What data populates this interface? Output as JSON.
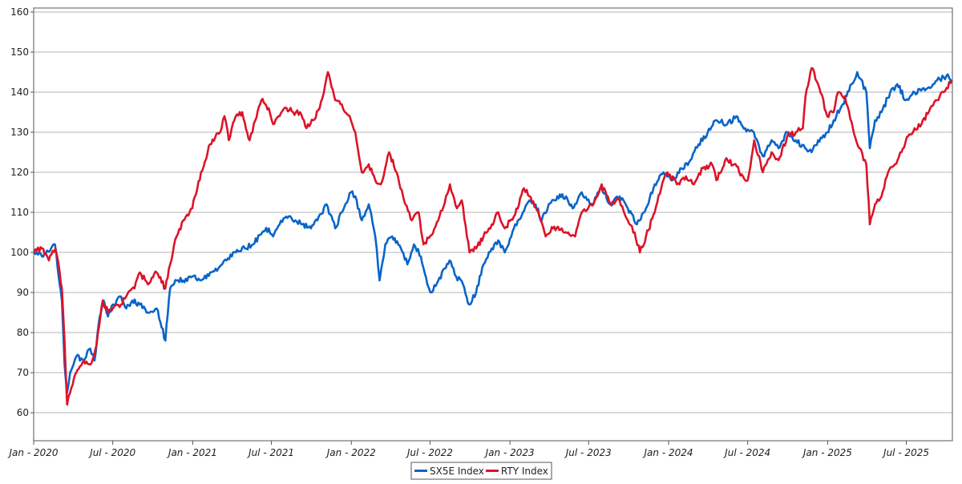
{
  "chart_data": {
    "type": "line",
    "title": "",
    "xlabel": "",
    "ylabel": "",
    "xlim": [
      "2020-01-01",
      "2025-10-15"
    ],
    "ylim": [
      53,
      161
    ],
    "yticks": [
      60,
      70,
      80,
      90,
      100,
      110,
      120,
      130,
      140,
      150,
      160
    ],
    "xticks": [
      {
        "date": "2020-01-01",
        "label": "Jan - 2020"
      },
      {
        "date": "2020-07-01",
        "label": "Jul - 2020"
      },
      {
        "date": "2021-01-01",
        "label": "Jan - 2021"
      },
      {
        "date": "2021-07-01",
        "label": "Jul - 2021"
      },
      {
        "date": "2022-01-01",
        "label": "Jan - 2022"
      },
      {
        "date": "2022-07-01",
        "label": "Jul - 2022"
      },
      {
        "date": "2023-01-01",
        "label": "Jan - 2023"
      },
      {
        "date": "2023-07-01",
        "label": "Jul - 2023"
      },
      {
        "date": "2024-01-01",
        "label": "Jan - 2024"
      },
      {
        "date": "2024-07-01",
        "label": "Jul - 2024"
      },
      {
        "date": "2025-01-01",
        "label": "Jan - 2025"
      },
      {
        "date": "2025-07-01",
        "label": "Jul - 2025"
      }
    ],
    "grid": "horizontal",
    "legend_position": "bottom-center",
    "series": [
      {
        "name": "SX5E Index",
        "color": "#0a64c8",
        "points": [
          [
            "2020-01-02",
            100
          ],
          [
            "2020-01-20",
            99
          ],
          [
            "2020-02-10",
            101
          ],
          [
            "2020-02-19",
            102
          ],
          [
            "2020-03-01",
            92
          ],
          [
            "2020-03-06",
            88
          ],
          [
            "2020-03-12",
            72
          ],
          [
            "2020-03-18",
            65
          ],
          [
            "2020-03-25",
            70
          ],
          [
            "2020-04-08",
            74
          ],
          [
            "2020-04-25",
            73
          ],
          [
            "2020-05-10",
            76
          ],
          [
            "2020-05-20",
            73
          ],
          [
            "2020-06-01",
            84
          ],
          [
            "2020-06-10",
            88
          ],
          [
            "2020-06-20",
            84
          ],
          [
            "2020-07-01",
            87
          ],
          [
            "2020-07-20",
            89
          ],
          [
            "2020-08-01",
            86
          ],
          [
            "2020-08-15",
            88
          ],
          [
            "2020-09-01",
            87
          ],
          [
            "2020-09-20",
            85
          ],
          [
            "2020-10-10",
            86
          ],
          [
            "2020-10-30",
            78
          ],
          [
            "2020-11-10",
            91
          ],
          [
            "2020-11-25",
            93
          ],
          [
            "2020-12-10",
            93
          ],
          [
            "2020-12-31",
            94
          ],
          [
            "2021-01-20",
            93
          ],
          [
            "2021-02-10",
            95
          ],
          [
            "2021-03-01",
            96
          ],
          [
            "2021-03-20",
            98
          ],
          [
            "2021-04-10",
            100
          ],
          [
            "2021-05-01",
            101
          ],
          [
            "2021-05-20",
            102
          ],
          [
            "2021-06-10",
            105
          ],
          [
            "2021-06-25",
            106
          ],
          [
            "2021-07-05",
            104
          ],
          [
            "2021-07-20",
            107
          ],
          [
            "2021-08-10",
            109
          ],
          [
            "2021-08-25",
            108
          ],
          [
            "2021-09-10",
            107
          ],
          [
            "2021-09-30",
            106
          ],
          [
            "2021-10-15",
            108
          ],
          [
            "2021-11-05",
            112
          ],
          [
            "2021-11-25",
            106
          ],
          [
            "2021-12-10",
            110
          ],
          [
            "2021-12-31",
            115
          ],
          [
            "2022-01-10",
            114
          ],
          [
            "2022-01-25",
            108
          ],
          [
            "2022-02-10",
            112
          ],
          [
            "2022-02-25",
            104
          ],
          [
            "2022-03-07",
            93
          ],
          [
            "2022-03-20",
            102
          ],
          [
            "2022-04-05",
            104
          ],
          [
            "2022-04-25",
            101
          ],
          [
            "2022-05-10",
            97
          ],
          [
            "2022-05-25",
            102
          ],
          [
            "2022-06-10",
            99
          ],
          [
            "2022-06-25",
            92
          ],
          [
            "2022-07-05",
            90
          ],
          [
            "2022-07-20",
            93
          ],
          [
            "2022-08-15",
            98
          ],
          [
            "2022-08-30",
            94
          ],
          [
            "2022-09-15",
            92
          ],
          [
            "2022-09-29",
            87
          ],
          [
            "2022-10-15",
            90
          ],
          [
            "2022-11-01",
            97
          ],
          [
            "2022-11-20",
            101
          ],
          [
            "2022-12-05",
            103
          ],
          [
            "2022-12-20",
            100
          ],
          [
            "2023-01-10",
            106
          ],
          [
            "2023-01-31",
            110
          ],
          [
            "2023-02-15",
            113
          ],
          [
            "2023-03-01",
            112
          ],
          [
            "2023-03-15",
            108
          ],
          [
            "2023-03-31",
            112
          ],
          [
            "2023-04-20",
            114
          ],
          [
            "2023-05-10",
            114
          ],
          [
            "2023-05-25",
            111
          ],
          [
            "2023-06-15",
            115
          ],
          [
            "2023-07-10",
            112
          ],
          [
            "2023-07-31",
            116
          ],
          [
            "2023-08-20",
            112
          ],
          [
            "2023-09-10",
            114
          ],
          [
            "2023-09-29",
            111
          ],
          [
            "2023-10-20",
            107
          ],
          [
            "2023-11-10",
            111
          ],
          [
            "2023-11-30",
            117
          ],
          [
            "2023-12-20",
            120
          ],
          [
            "2024-01-10",
            118
          ],
          [
            "2024-01-31",
            121
          ],
          [
            "2024-02-20",
            123
          ],
          [
            "2024-03-10",
            127
          ],
          [
            "2024-03-31",
            130
          ],
          [
            "2024-04-20",
            133
          ],
          [
            "2024-05-15",
            132
          ],
          [
            "2024-06-05",
            134
          ],
          [
            "2024-06-25",
            131
          ],
          [
            "2024-07-15",
            130
          ],
          [
            "2024-08-05",
            124
          ],
          [
            "2024-08-25",
            128
          ],
          [
            "2024-09-10",
            126
          ],
          [
            "2024-09-30",
            130
          ],
          [
            "2024-10-20",
            128
          ],
          [
            "2024-11-10",
            126
          ],
          [
            "2024-11-25",
            125
          ],
          [
            "2024-12-10",
            128
          ],
          [
            "2024-12-31",
            130
          ],
          [
            "2025-01-15",
            133
          ],
          [
            "2025-02-05",
            137
          ],
          [
            "2025-02-25",
            142
          ],
          [
            "2025-03-10",
            145
          ],
          [
            "2025-03-31",
            140
          ],
          [
            "2025-04-08",
            126
          ],
          [
            "2025-04-20",
            133
          ],
          [
            "2025-05-05",
            135
          ],
          [
            "2025-05-25",
            140
          ],
          [
            "2025-06-10",
            142
          ],
          [
            "2025-06-30",
            138
          ],
          [
            "2025-07-20",
            140
          ],
          [
            "2025-08-10",
            141
          ],
          [
            "2025-08-25",
            141
          ],
          [
            "2025-09-10",
            143
          ],
          [
            "2025-10-01",
            144
          ],
          [
            "2025-10-14",
            143
          ]
        ]
      },
      {
        "name": "RTY Index",
        "color": "#dc1428",
        "points": [
          [
            "2020-01-02",
            100
          ],
          [
            "2020-01-20",
            101
          ],
          [
            "2020-02-05",
            98
          ],
          [
            "2020-02-20",
            101
          ],
          [
            "2020-03-01",
            95
          ],
          [
            "2020-03-06",
            91
          ],
          [
            "2020-03-12",
            78
          ],
          [
            "2020-03-18",
            62
          ],
          [
            "2020-03-25",
            65
          ],
          [
            "2020-04-08",
            70
          ],
          [
            "2020-04-25",
            73
          ],
          [
            "2020-05-10",
            72
          ],
          [
            "2020-05-25",
            77
          ],
          [
            "2020-06-08",
            88
          ],
          [
            "2020-06-20",
            85
          ],
          [
            "2020-07-01",
            86
          ],
          [
            "2020-07-20",
            87
          ],
          [
            "2020-08-01",
            89
          ],
          [
            "2020-08-20",
            91
          ],
          [
            "2020-09-01",
            95
          ],
          [
            "2020-09-20",
            92
          ],
          [
            "2020-10-10",
            95
          ],
          [
            "2020-10-30",
            91
          ],
          [
            "2020-11-10",
            97
          ],
          [
            "2020-11-25",
            104
          ],
          [
            "2020-12-10",
            108
          ],
          [
            "2020-12-31",
            111
          ],
          [
            "2021-01-20",
            120
          ],
          [
            "2021-02-10",
            127
          ],
          [
            "2021-03-05",
            130
          ],
          [
            "2021-03-15",
            134
          ],
          [
            "2021-03-25",
            128
          ],
          [
            "2021-04-10",
            134
          ],
          [
            "2021-04-25",
            135
          ],
          [
            "2021-05-12",
            128
          ],
          [
            "2021-05-25",
            133
          ],
          [
            "2021-06-08",
            138
          ],
          [
            "2021-06-25",
            136
          ],
          [
            "2021-07-05",
            132
          ],
          [
            "2021-07-20",
            134
          ],
          [
            "2021-08-05",
            136
          ],
          [
            "2021-08-20",
            135
          ],
          [
            "2021-09-05",
            135
          ],
          [
            "2021-09-20",
            131
          ],
          [
            "2021-10-05",
            133
          ],
          [
            "2021-10-20",
            136
          ],
          [
            "2021-11-08",
            145
          ],
          [
            "2021-11-25",
            138
          ],
          [
            "2021-12-10",
            137
          ],
          [
            "2021-12-31",
            133
          ],
          [
            "2022-01-10",
            130
          ],
          [
            "2022-01-25",
            120
          ],
          [
            "2022-02-10",
            122
          ],
          [
            "2022-02-25",
            118
          ],
          [
            "2022-03-10",
            117
          ],
          [
            "2022-03-29",
            125
          ],
          [
            "2022-04-15",
            120
          ],
          [
            "2022-04-30",
            114
          ],
          [
            "2022-05-20",
            108
          ],
          [
            "2022-06-05",
            110
          ],
          [
            "2022-06-16",
            102
          ],
          [
            "2022-07-01",
            104
          ],
          [
            "2022-07-20",
            108
          ],
          [
            "2022-08-16",
            117
          ],
          [
            "2022-09-01",
            111
          ],
          [
            "2022-09-12",
            113
          ],
          [
            "2022-09-30",
            100
          ],
          [
            "2022-10-15",
            101
          ],
          [
            "2022-11-01",
            104
          ],
          [
            "2022-11-20",
            107
          ],
          [
            "2022-12-05",
            110
          ],
          [
            "2022-12-20",
            106
          ],
          [
            "2023-01-10",
            109
          ],
          [
            "2023-02-02",
            116
          ],
          [
            "2023-02-15",
            114
          ],
          [
            "2023-03-10",
            109
          ],
          [
            "2023-03-24",
            104
          ],
          [
            "2023-04-10",
            106
          ],
          [
            "2023-04-30",
            106
          ],
          [
            "2023-05-15",
            105
          ],
          [
            "2023-05-31",
            104
          ],
          [
            "2023-06-15",
            110
          ],
          [
            "2023-06-30",
            111
          ],
          [
            "2023-07-15",
            113
          ],
          [
            "2023-07-31",
            117
          ],
          [
            "2023-08-20",
            112
          ],
          [
            "2023-09-10",
            113
          ],
          [
            "2023-09-29",
            108
          ],
          [
            "2023-10-15",
            105
          ],
          [
            "2023-10-27",
            100
          ],
          [
            "2023-11-10",
            104
          ],
          [
            "2023-11-30",
            110
          ],
          [
            "2023-12-15",
            116
          ],
          [
            "2023-12-29",
            120
          ],
          [
            "2024-01-20",
            117
          ],
          [
            "2024-02-10",
            119
          ],
          [
            "2024-02-28",
            117
          ],
          [
            "2024-03-20",
            121
          ],
          [
            "2024-04-10",
            122
          ],
          [
            "2024-04-20",
            118
          ],
          [
            "2024-05-10",
            123
          ],
          [
            "2024-05-31",
            122
          ],
          [
            "2024-06-20",
            119
          ],
          [
            "2024-07-01",
            118
          ],
          [
            "2024-07-16",
            128
          ],
          [
            "2024-08-05",
            120
          ],
          [
            "2024-08-25",
            125
          ],
          [
            "2024-09-10",
            123
          ],
          [
            "2024-09-30",
            129
          ],
          [
            "2024-10-20",
            130
          ],
          [
            "2024-11-05",
            131
          ],
          [
            "2024-11-11",
            139
          ],
          [
            "2024-11-25",
            146
          ],
          [
            "2024-12-10",
            142
          ],
          [
            "2024-12-31",
            134
          ],
          [
            "2025-01-15",
            135
          ],
          [
            "2025-01-25",
            140
          ],
          [
            "2025-02-10",
            139
          ],
          [
            "2025-02-28",
            131
          ],
          [
            "2025-03-15",
            126
          ],
          [
            "2025-03-31",
            122
          ],
          [
            "2025-04-08",
            107
          ],
          [
            "2025-04-20",
            112
          ],
          [
            "2025-05-05",
            114
          ],
          [
            "2025-05-20",
            120
          ],
          [
            "2025-06-05",
            122
          ],
          [
            "2025-06-20",
            125
          ],
          [
            "2025-07-05",
            129
          ],
          [
            "2025-07-20",
            131
          ],
          [
            "2025-08-05",
            132
          ],
          [
            "2025-08-25",
            136
          ],
          [
            "2025-09-10",
            138
          ],
          [
            "2025-09-25",
            140
          ],
          [
            "2025-10-14",
            143
          ]
        ]
      }
    ]
  }
}
